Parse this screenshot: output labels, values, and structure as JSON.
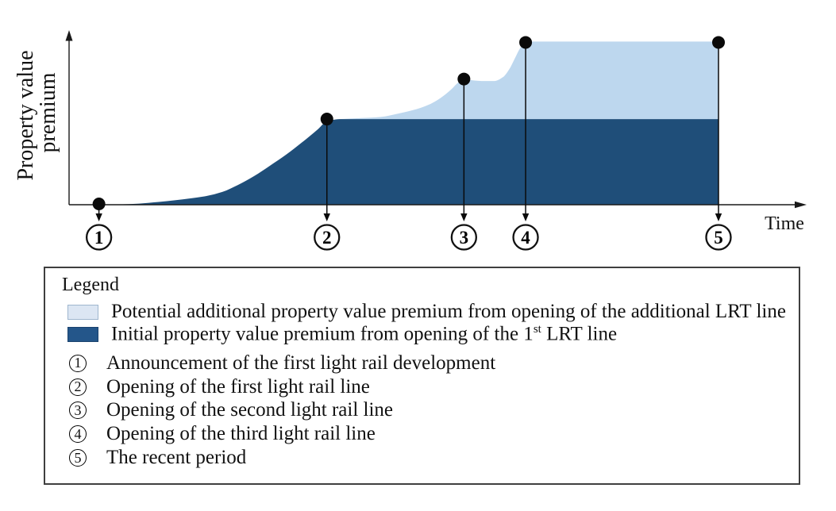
{
  "chart": {
    "y_axis_label_lines": [
      "Property value",
      "premium"
    ],
    "x_axis_label": "Time",
    "colors": {
      "initial": "#1F4E79",
      "additional": "#BDD7EE",
      "marker": "#0a0a0a",
      "axis": "#1a1a1a"
    }
  },
  "chart_data": {
    "type": "area",
    "title": "",
    "xlabel": "Time",
    "ylabel": "Property value premium",
    "x_unit": "relative time (0 = axis origin, 1 = recent period)",
    "y_unit": "relative premium (1 = total premium in recent period)",
    "events": [
      {
        "id": "1",
        "t": 0.046,
        "premium": 0.0,
        "label": "Announcement of the first light rail development"
      },
      {
        "id": "2",
        "t": 0.397,
        "premium": 0.524,
        "label": "Opening of the first light rail line"
      },
      {
        "id": "3",
        "t": 0.608,
        "premium": 0.769,
        "label": "Opening of the second light rail line"
      },
      {
        "id": "4",
        "t": 0.703,
        "premium": 0.993,
        "label": "Opening of the third light rail line"
      },
      {
        "id": "5",
        "t": 1.0,
        "premium": 0.993,
        "label": "The recent period"
      }
    ],
    "series": [
      {
        "name": "Initial property value premium from opening of the 1st LRT line",
        "color": "#1F4E79",
        "base_v": 0,
        "points": [
          [
            0.046,
            0.0
          ],
          [
            0.077,
            0.002
          ],
          [
            0.108,
            0.007
          ],
          [
            0.138,
            0.017
          ],
          [
            0.163,
            0.027
          ],
          [
            0.187,
            0.039
          ],
          [
            0.211,
            0.053
          ],
          [
            0.236,
            0.078
          ],
          [
            0.26,
            0.121
          ],
          [
            0.285,
            0.175
          ],
          [
            0.309,
            0.238
          ],
          [
            0.334,
            0.306
          ],
          [
            0.358,
            0.379
          ],
          [
            0.383,
            0.461
          ],
          [
            0.395,
            0.505
          ],
          [
            0.405,
            0.518
          ],
          [
            0.417,
            0.524
          ],
          [
            0.578,
            0.524
          ],
          [
            0.749,
            0.524
          ],
          [
            1.0,
            0.524
          ]
        ]
      },
      {
        "name": "Potential additional property value premium from opening of the additional LRT line",
        "color": "#BDD7EE",
        "base_v": 0.524,
        "points": [
          [
            0.417,
            0.524
          ],
          [
            0.45,
            0.53
          ],
          [
            0.48,
            0.537
          ],
          [
            0.505,
            0.556
          ],
          [
            0.529,
            0.578
          ],
          [
            0.554,
            0.612
          ],
          [
            0.572,
            0.653
          ],
          [
            0.588,
            0.704
          ],
          [
            0.6,
            0.75
          ],
          [
            0.608,
            0.769
          ],
          [
            0.617,
            0.763
          ],
          [
            0.635,
            0.757
          ],
          [
            0.655,
            0.757
          ],
          [
            0.668,
            0.78
          ],
          [
            0.678,
            0.83
          ],
          [
            0.687,
            0.9
          ],
          [
            0.695,
            0.96
          ],
          [
            0.703,
            0.993
          ],
          [
            0.719,
            0.998
          ],
          [
            0.847,
            0.998
          ],
          [
            1.0,
            0.998
          ]
        ]
      }
    ]
  },
  "legend": {
    "title": "Legend",
    "swatches": [
      {
        "label": "Potential additional property value premium from opening of the additional LRT line"
      },
      {
        "label_prefix": "Initial property value premium from opening of the 1",
        "label_sup": "st",
        "label_suffix": " LRT line"
      }
    ],
    "events": [
      {
        "num": "1",
        "label": "Announcement of the first light rail development"
      },
      {
        "num": "2",
        "label": "Opening of the first light rail line"
      },
      {
        "num": "3",
        "label": "Opening of the second light rail line"
      },
      {
        "num": "4",
        "label": "Opening of the third light rail line"
      },
      {
        "num": "5",
        "label": "The recent period"
      }
    ]
  }
}
